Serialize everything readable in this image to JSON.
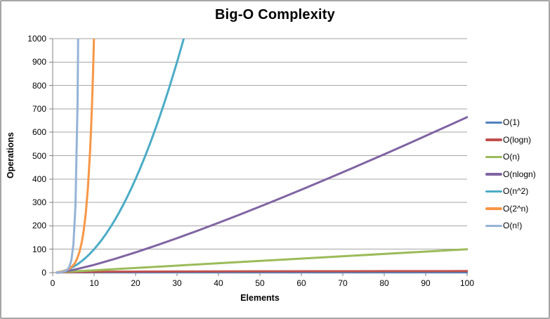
{
  "window": {
    "background": "#ffffff",
    "border_color": "#a6a6a6"
  },
  "chart_data": {
    "type": "line",
    "title": "Big-O Complexity",
    "xlabel": "Elements",
    "ylabel": "Operations",
    "xlim": [
      0,
      100
    ],
    "ylim": [
      0,
      1000
    ],
    "xticks": [
      0,
      10,
      20,
      30,
      40,
      50,
      60,
      70,
      80,
      90,
      100
    ],
    "yticks": [
      0,
      100,
      200,
      300,
      400,
      500,
      600,
      700,
      800,
      900,
      1000
    ],
    "grid": "horizontal-major-only",
    "legend_position": "right",
    "styles": {
      "grid_color": "#a6a6a6",
      "axis_color": "#808080",
      "line_width": 3,
      "tick_length": 5
    },
    "series": [
      {
        "name": "O(1)",
        "color": "#4F81BD",
        "points": [
          [
            1,
            1
          ],
          [
            100,
            1
          ]
        ]
      },
      {
        "name": "O(logn)",
        "color": "#C0504D",
        "points": [
          [
            1,
            0
          ],
          [
            1.5,
            0.58
          ],
          [
            2,
            1
          ],
          [
            3,
            1.58
          ],
          [
            4,
            2
          ],
          [
            6,
            2.58
          ],
          [
            8,
            3
          ],
          [
            12,
            3.58
          ],
          [
            16,
            4
          ],
          [
            24,
            4.58
          ],
          [
            32,
            5
          ],
          [
            48,
            5.58
          ],
          [
            64,
            6
          ],
          [
            80,
            6.32
          ],
          [
            100,
            6.64
          ]
        ]
      },
      {
        "name": "O(n)",
        "color": "#9BBB59",
        "points": [
          [
            1,
            1
          ],
          [
            100,
            100
          ]
        ]
      },
      {
        "name": "O(nlogn)",
        "color": "#8064A2",
        "points": [
          [
            1,
            0
          ],
          [
            2,
            2
          ],
          [
            5,
            11.6
          ],
          [
            10,
            33.2
          ],
          [
            15,
            58.6
          ],
          [
            20,
            86.4
          ],
          [
            25,
            116.1
          ],
          [
            30,
            147.2
          ],
          [
            35,
            179.5
          ],
          [
            40,
            212.9
          ],
          [
            45,
            247.1
          ],
          [
            50,
            282.2
          ],
          [
            55,
            318.0
          ],
          [
            60,
            354.4
          ],
          [
            65,
            391.4
          ],
          [
            70,
            429.0
          ],
          [
            75,
            467.2
          ],
          [
            80,
            505.8
          ],
          [
            85,
            544.8
          ],
          [
            90,
            584.3
          ],
          [
            95,
            624.2
          ],
          [
            100,
            664.4
          ]
        ]
      },
      {
        "name": "O(n^2)",
        "color": "#4BACC6",
        "points": [
          [
            1,
            1
          ],
          [
            2,
            4
          ],
          [
            3,
            9
          ],
          [
            4,
            16
          ],
          [
            5,
            25
          ],
          [
            6,
            36
          ],
          [
            7,
            49
          ],
          [
            8,
            64
          ],
          [
            9,
            81
          ],
          [
            10,
            100
          ],
          [
            11,
            121
          ],
          [
            12,
            144
          ],
          [
            13,
            169
          ],
          [
            14,
            196
          ],
          [
            15,
            225
          ],
          [
            16,
            256
          ],
          [
            17,
            289
          ],
          [
            18,
            324
          ],
          [
            19,
            361
          ],
          [
            20,
            400
          ],
          [
            21,
            441
          ],
          [
            22,
            484
          ],
          [
            23,
            529
          ],
          [
            24,
            576
          ],
          [
            25,
            625
          ],
          [
            26,
            676
          ],
          [
            27,
            729
          ],
          [
            28,
            784
          ],
          [
            29,
            841
          ],
          [
            30,
            900
          ],
          [
            31,
            961
          ],
          [
            32,
            1024
          ]
        ]
      },
      {
        "name": "O(2^n)",
        "color": "#F79646",
        "points": [
          [
            1,
            2
          ],
          [
            2,
            4
          ],
          [
            3,
            8
          ],
          [
            4,
            16
          ],
          [
            5,
            32
          ],
          [
            5.5,
            45
          ],
          [
            6,
            64
          ],
          [
            6.5,
            91
          ],
          [
            7,
            128
          ],
          [
            7.5,
            181
          ],
          [
            8,
            256
          ],
          [
            8.5,
            362
          ],
          [
            9,
            512
          ],
          [
            9.25,
            609
          ],
          [
            9.5,
            724
          ],
          [
            9.75,
            861
          ],
          [
            10,
            1024
          ],
          [
            10.25,
            1218
          ]
        ]
      },
      {
        "name": "O(n!)",
        "color": "#95B3D7",
        "points": [
          [
            1,
            1
          ],
          [
            2,
            2
          ],
          [
            2.5,
            3.3
          ],
          [
            3,
            6
          ],
          [
            3.5,
            11.6
          ],
          [
            4,
            24
          ],
          [
            4.5,
            52
          ],
          [
            5,
            120
          ],
          [
            5.5,
            288
          ],
          [
            6,
            720
          ],
          [
            6.3,
            1300
          ],
          [
            6.5,
            2880
          ],
          [
            7,
            5040
          ]
        ]
      }
    ]
  }
}
